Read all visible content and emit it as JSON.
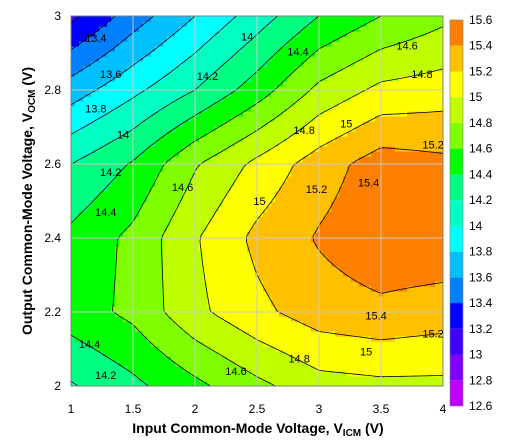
{
  "chart_data": {
    "type": "heatmap",
    "subtype": "filled-contour",
    "xlabel": "Input Common-Mode Voltage, V",
    "xlabel_sub": "ICM",
    "xlabel_unit": " (V)",
    "ylabel": "Output Common-Mode Voltage, V",
    "ylabel_sub": "OCM",
    "ylabel_unit": " (V)",
    "xlim": [
      1,
      4
    ],
    "ylim": [
      2,
      3
    ],
    "grid": true,
    "colorbar_position": "right",
    "x_ticks": [
      "1",
      "1.5",
      "2",
      "2.5",
      "3",
      "3.5",
      "4"
    ],
    "y_ticks": [
      "2",
      "2.2",
      "2.4",
      "2.6",
      "2.8",
      "3"
    ],
    "colorbar_ticks": [
      "12.6",
      "12.8",
      "13",
      "13.2",
      "13.4",
      "13.6",
      "13.8",
      "14",
      "14.2",
      "14.4",
      "14.6",
      "14.8",
      "15",
      "15.2",
      "15.4",
      "15.6"
    ],
    "levels": [
      12.6,
      12.8,
      13.0,
      13.2,
      13.4,
      13.6,
      13.8,
      14.0,
      14.2,
      14.4,
      14.6,
      14.8,
      15.0,
      15.2,
      15.4,
      15.6
    ],
    "level_colors": [
      "#ff00ff",
      "#bf00ff",
      "#7f00ff",
      "#3f00ff",
      "#0000ff",
      "#0080ff",
      "#00c0ff",
      "#00ffff",
      "#00ffc0",
      "#00ff80",
      "#00ff00",
      "#80ff00",
      "#c0ff00",
      "#ffff00",
      "#ffc000",
      "#ff8000",
      "#ff0000"
    ],
    "x": [
      1,
      1.5,
      2,
      2.5,
      3,
      3.5,
      4
    ],
    "y": [
      2,
      2.2,
      2.4,
      2.6,
      2.8,
      3
    ],
    "z": [
      [
        14.18,
        14.35,
        14.55,
        14.75,
        14.92,
        14.95,
        14.95
      ],
      [
        14.5,
        14.65,
        14.95,
        15.15,
        15.3,
        15.35,
        15.3
      ],
      [
        14.45,
        14.65,
        14.98,
        15.25,
        15.42,
        15.55,
        15.55
      ],
      [
        14.2,
        14.42,
        14.78,
        15.05,
        15.3,
        15.5,
        15.45
      ],
      [
        13.7,
        13.95,
        14.2,
        14.5,
        14.85,
        15.05,
        15.1
      ],
      [
        13.15,
        13.5,
        13.8,
        14.1,
        14.4,
        14.6,
        14.75
      ]
    ],
    "contour_labels": [
      {
        "text": "13.4",
        "x": 1.2,
        "y": 2.94
      },
      {
        "text": "13.6",
        "x": 1.32,
        "y": 2.843
      },
      {
        "text": "13.8",
        "x": 1.2,
        "y": 2.75
      },
      {
        "text": "14",
        "x": 1.42,
        "y": 2.68
      },
      {
        "text": "14",
        "x": 2.42,
        "y": 2.945
      },
      {
        "text": "14.2",
        "x": 2.1,
        "y": 2.838
      },
      {
        "text": "14.4",
        "x": 2.83,
        "y": 2.904
      },
      {
        "text": "14.6",
        "x": 3.71,
        "y": 2.92
      },
      {
        "text": "14.8",
        "x": 3.83,
        "y": 2.843
      },
      {
        "text": "14.2",
        "x": 1.32,
        "y": 2.578
      },
      {
        "text": "14.4",
        "x": 1.28,
        "y": 2.47
      },
      {
        "text": "14.6",
        "x": 1.9,
        "y": 2.538
      },
      {
        "text": "14.8",
        "x": 2.88,
        "y": 2.692
      },
      {
        "text": "15",
        "x": 3.22,
        "y": 2.71
      },
      {
        "text": "15.2",
        "x": 3.92,
        "y": 2.653
      },
      {
        "text": "15",
        "x": 2.52,
        "y": 2.5
      },
      {
        "text": "15.2",
        "x": 2.98,
        "y": 2.532
      },
      {
        "text": "15.4",
        "x": 3.4,
        "y": 2.55
      },
      {
        "text": "15.4",
        "x": 3.46,
        "y": 2.19
      },
      {
        "text": "15.2",
        "x": 3.92,
        "y": 2.142
      },
      {
        "text": "15",
        "x": 3.38,
        "y": 2.093
      },
      {
        "text": "14.8",
        "x": 2.84,
        "y": 2.075
      },
      {
        "text": "14.6",
        "x": 2.33,
        "y": 2.04
      },
      {
        "text": "14.4",
        "x": 1.15,
        "y": 2.113
      },
      {
        "text": "14.2",
        "x": 1.28,
        "y": 2.03
      }
    ]
  }
}
